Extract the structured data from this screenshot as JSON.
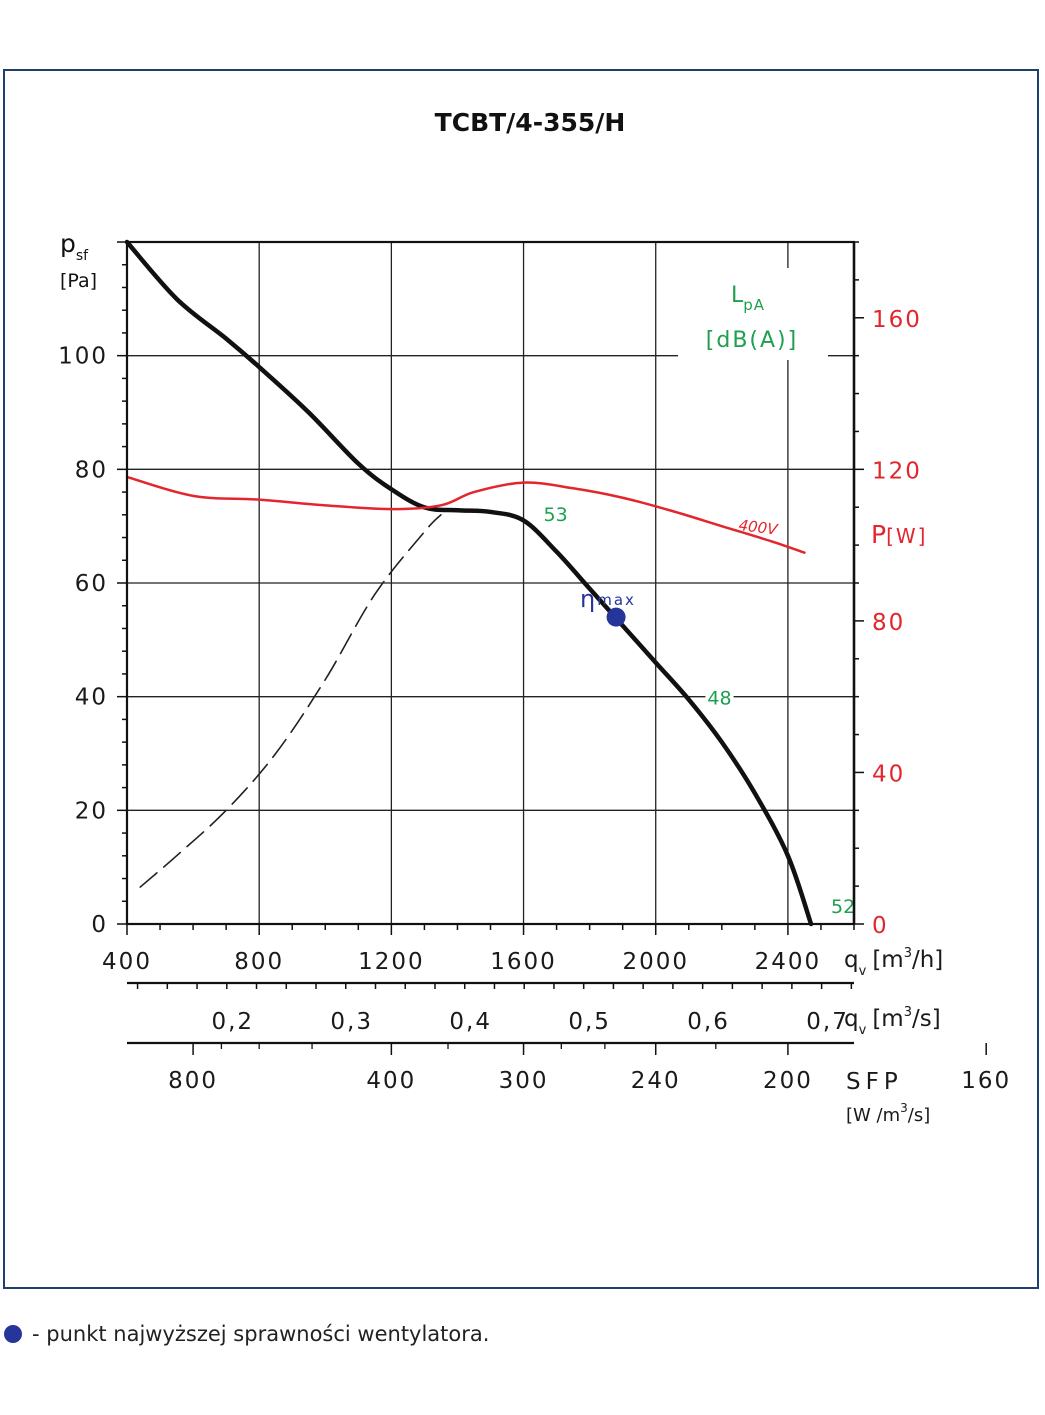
{
  "title": "TCBT/4-355/H",
  "legend_note": "- punkt najwyższej sprawności wentylatora.",
  "colors": {
    "frame": "#1f3f6e",
    "pressure": "#111111",
    "power": "#e3262d",
    "noise": "#1ea04f",
    "eta_point": "#26359a"
  },
  "axes": {
    "y_left": {
      "symbol": "p",
      "sub": "sf",
      "unit": "[Pa]",
      "range": [
        0,
        120
      ],
      "ticks": [
        "0",
        "20",
        "40",
        "60",
        "80",
        "100"
      ]
    },
    "y_right": {
      "symbol": "P",
      "unit": "[W]",
      "range": [
        0,
        180
      ],
      "ticks": [
        "0",
        "40",
        "80",
        "120",
        "160"
      ]
    },
    "x_m3h": {
      "symbol": "q",
      "sub": "v",
      "unit_pre": "[m",
      "unit_sup": "3",
      "unit_post": "/h]",
      "range": [
        400,
        2600
      ],
      "ticks": [
        "400",
        "800",
        "1200",
        "1600",
        "2000",
        "2400"
      ]
    },
    "x_m3s": {
      "symbol": "q",
      "sub": "v",
      "unit_pre": "[m",
      "unit_sup": "3",
      "unit_post": "/s]",
      "ticks": [
        "0,2",
        "0,3",
        "0,4",
        "0,5",
        "0,6",
        "0,7"
      ]
    },
    "sfp": {
      "label": "SFP",
      "unit_pre": "[W /m",
      "unit_sup": "3",
      "unit_post": "/s]",
      "ticks": [
        "800",
        "400",
        "300",
        "240",
        "200",
        "160"
      ]
    }
  },
  "noise_legend": {
    "symbol": "L",
    "sub": "pA",
    "unit": "[dB(A)]"
  },
  "eta": {
    "symbol": "η",
    "sub": "max"
  },
  "chart_data": {
    "type": "line",
    "title": "TCBT/4-355/H",
    "x_unit": "m3/h",
    "xlim": [
      400,
      2600
    ],
    "ylim": [
      0,
      120
    ],
    "y2lim": [
      0,
      180
    ],
    "grid": true,
    "series": [
      {
        "name": "psf",
        "axis": "left",
        "x": [
          400,
          550,
          700,
          800,
          950,
          1100,
          1200,
          1300,
          1400,
          1500,
          1600,
          1700,
          1800,
          1900,
          2000,
          2100,
          2200,
          2300,
          2400,
          2470
        ],
        "y": [
          120,
          110,
          103,
          98,
          90,
          81,
          76.5,
          73.3,
          72.8,
          72.5,
          71,
          65.5,
          59,
          52.5,
          46,
          39.5,
          32,
          23,
          12,
          0
        ]
      },
      {
        "name": "400V",
        "axis": "right",
        "x": [
          400,
          600,
          800,
          1000,
          1200,
          1350,
          1450,
          1600,
          1750,
          1900,
          2050,
          2200,
          2350,
          2450
        ],
        "y": [
          118,
          113,
          112,
          110.5,
          109.5,
          110.5,
          114,
          116.5,
          115,
          112.5,
          109,
          105,
          101,
          98
        ]
      },
      {
        "name": "system",
        "axis": "left",
        "style": "dashed",
        "x": [
          440,
          550,
          700,
          850,
          1000,
          1150,
          1300,
          1350
        ],
        "y": [
          6.5,
          12,
          20,
          30,
          43,
          58,
          69,
          72
        ]
      }
    ],
    "annotations": [
      {
        "text": "53",
        "x": 1600,
        "y": 72
      },
      {
        "text": "48",
        "x": 2120,
        "y": 40
      },
      {
        "text": "52",
        "x": 2470,
        "y": 3
      },
      {
        "text": "400V",
        "x": 2340,
        "y": 104,
        "axis": "right"
      }
    ],
    "eta_max": {
      "x": 1880,
      "y": 54
    }
  }
}
